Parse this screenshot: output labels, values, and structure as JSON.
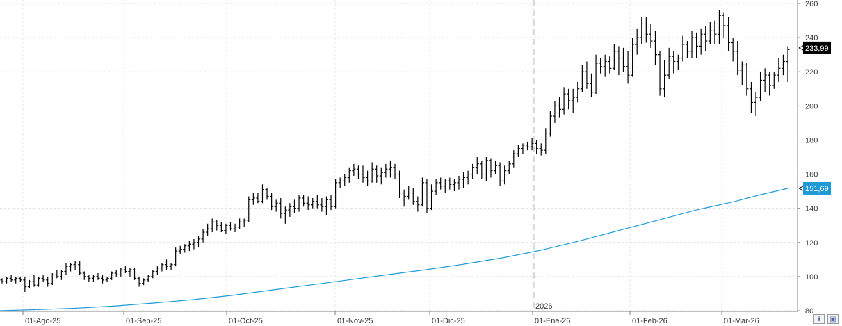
{
  "chart_data": {
    "type": "ohlc",
    "y_axis": {
      "ticks": [
        80,
        100,
        120,
        140,
        160,
        180,
        200,
        220,
        240,
        260
      ],
      "range": [
        80,
        262
      ],
      "position": "right",
      "grid": true
    },
    "x_axis": {
      "tick_labels": [
        "01-Ago-25",
        "01-Sep-25",
        "01-Oct-25",
        "01-Nov-25",
        "01-Dic-25",
        "01-Ene-26",
        "01-Feb-26",
        "01-Mar-26"
      ],
      "year_marker": "2026",
      "grid": true
    },
    "ohlc": [
      [
        98,
        99,
        96,
        97
      ],
      [
        97,
        100,
        96,
        99
      ],
      [
        99,
        101,
        97,
        98
      ],
      [
        98,
        100,
        96,
        99
      ],
      [
        99,
        100,
        97,
        98
      ],
      [
        98,
        100,
        91,
        94
      ],
      [
        94,
        98,
        93,
        97
      ],
      [
        97,
        101,
        94,
        95
      ],
      [
        95,
        100,
        94,
        99
      ],
      [
        99,
        101,
        97,
        98
      ],
      [
        98,
        100,
        94,
        96
      ],
      [
        96,
        102,
        95,
        101
      ],
      [
        101,
        104,
        99,
        100
      ],
      [
        100,
        104,
        98,
        103
      ],
      [
        103,
        108,
        101,
        106
      ],
      [
        106,
        108,
        103,
        107
      ],
      [
        107,
        109,
        104,
        108
      ],
      [
        107,
        109,
        101,
        102
      ],
      [
        102,
        103,
        98,
        100
      ],
      [
        100,
        101,
        97,
        99
      ],
      [
        99,
        101,
        97,
        100
      ],
      [
        100,
        102,
        98,
        99
      ],
      [
        99,
        101,
        96,
        98
      ],
      [
        98,
        100,
        97,
        99
      ],
      [
        99,
        103,
        98,
        102
      ],
      [
        102,
        104,
        100,
        101
      ],
      [
        101,
        105,
        100,
        104
      ],
      [
        104,
        106,
        102,
        103
      ],
      [
        103,
        105,
        100,
        104
      ],
      [
        104,
        105,
        98,
        99
      ],
      [
        99,
        100,
        94,
        96
      ],
      [
        96,
        99,
        95,
        98
      ],
      [
        98,
        101,
        97,
        100
      ],
      [
        100,
        104,
        99,
        103
      ],
      [
        103,
        106,
        101,
        105
      ],
      [
        105,
        108,
        103,
        107
      ],
      [
        107,
        110,
        104,
        106
      ],
      [
        106,
        108,
        104,
        107
      ],
      [
        107,
        117,
        106,
        115
      ],
      [
        115,
        118,
        113,
        116
      ],
      [
        116,
        119,
        114,
        118
      ],
      [
        118,
        121,
        115,
        119
      ],
      [
        119,
        122,
        116,
        120
      ],
      [
        120,
        124,
        117,
        122
      ],
      [
        122,
        128,
        120,
        126
      ],
      [
        126,
        131,
        124,
        128
      ],
      [
        128,
        134,
        126,
        132
      ],
      [
        132,
        133,
        127,
        130
      ],
      [
        130,
        132,
        126,
        127
      ],
      [
        127,
        131,
        125,
        130
      ],
      [
        130,
        132,
        127,
        128
      ],
      [
        128,
        131,
        126,
        129
      ],
      [
        129,
        134,
        128,
        132
      ],
      [
        132,
        134,
        129,
        133
      ],
      [
        133,
        147,
        132,
        145
      ],
      [
        145,
        149,
        142,
        146
      ],
      [
        146,
        149,
        143,
        144
      ],
      [
        144,
        154,
        143,
        151
      ],
      [
        151,
        152,
        145,
        147
      ],
      [
        147,
        149,
        139,
        141
      ],
      [
        141,
        145,
        138,
        143
      ],
      [
        143,
        146,
        134,
        137
      ],
      [
        137,
        141,
        131,
        139
      ],
      [
        139,
        143,
        135,
        141
      ],
      [
        141,
        145,
        137,
        140
      ],
      [
        140,
        148,
        138,
        146
      ],
      [
        146,
        148,
        141,
        143
      ],
      [
        143,
        147,
        139,
        142
      ],
      [
        142,
        146,
        140,
        144
      ],
      [
        144,
        148,
        140,
        142
      ],
      [
        142,
        146,
        138,
        141
      ],
      [
        141,
        147,
        136,
        145
      ],
      [
        145,
        148,
        139,
        141
      ],
      [
        141,
        157,
        140,
        155
      ],
      [
        155,
        158,
        152,
        156
      ],
      [
        156,
        160,
        153,
        158
      ],
      [
        158,
        164,
        155,
        162
      ],
      [
        162,
        166,
        159,
        163
      ],
      [
        163,
        165,
        157,
        160
      ],
      [
        160,
        165,
        155,
        158
      ],
      [
        158,
        162,
        153,
        156
      ],
      [
        156,
        167,
        155,
        163
      ],
      [
        163,
        165,
        155,
        159
      ],
      [
        159,
        164,
        154,
        161
      ],
      [
        161,
        166,
        158,
        163
      ],
      [
        163,
        168,
        158,
        164
      ],
      [
        164,
        166,
        157,
        160
      ],
      [
        160,
        162,
        146,
        149
      ],
      [
        149,
        151,
        141,
        147
      ],
      [
        147,
        153,
        145,
        149
      ],
      [
        149,
        152,
        142,
        144
      ],
      [
        144,
        147,
        138,
        142
      ],
      [
        142,
        158,
        141,
        155
      ],
      [
        155,
        157,
        137,
        140
      ],
      [
        140,
        154,
        139,
        150
      ],
      [
        150,
        157,
        148,
        155
      ],
      [
        155,
        158,
        151,
        153
      ],
      [
        153,
        157,
        149,
        156
      ],
      [
        156,
        158,
        151,
        154
      ],
      [
        154,
        157,
        150,
        155
      ],
      [
        155,
        159,
        151,
        157
      ],
      [
        157,
        161,
        152,
        158
      ],
      [
        158,
        162,
        154,
        160
      ],
      [
        160,
        166,
        157,
        164
      ],
      [
        164,
        170,
        160,
        166
      ],
      [
        166,
        168,
        157,
        160
      ],
      [
        160,
        170,
        156,
        168
      ],
      [
        168,
        169,
        158,
        162
      ],
      [
        162,
        168,
        160,
        165
      ],
      [
        165,
        167,
        153,
        156
      ],
      [
        156,
        165,
        154,
        162
      ],
      [
        162,
        168,
        160,
        166
      ],
      [
        166,
        174,
        164,
        172
      ],
      [
        172,
        177,
        170,
        175
      ],
      [
        175,
        178,
        172,
        177
      ],
      [
        177,
        179,
        174,
        176
      ],
      [
        176,
        181,
        174,
        178
      ],
      [
        178,
        180,
        172,
        175
      ],
      [
        175,
        178,
        171,
        174
      ],
      [
        174,
        187,
        172,
        184
      ],
      [
        184,
        197,
        182,
        194
      ],
      [
        194,
        203,
        190,
        200
      ],
      [
        200,
        205,
        193,
        198
      ],
      [
        198,
        211,
        195,
        207
      ],
      [
        207,
        210,
        198,
        203
      ],
      [
        203,
        210,
        196,
        205
      ],
      [
        205,
        214,
        202,
        210
      ],
      [
        210,
        224,
        208,
        220
      ],
      [
        220,
        226,
        210,
        213
      ],
      [
        213,
        219,
        205,
        208
      ],
      [
        208,
        230,
        207,
        225
      ],
      [
        225,
        228,
        219,
        223
      ],
      [
        223,
        230,
        217,
        226
      ],
      [
        226,
        229,
        219,
        222
      ],
      [
        222,
        236,
        221,
        232
      ],
      [
        232,
        235,
        218,
        228
      ],
      [
        228,
        234,
        220,
        223
      ],
      [
        223,
        232,
        213,
        218
      ],
      [
        218,
        240,
        217,
        236
      ],
      [
        236,
        245,
        230,
        240
      ],
      [
        240,
        252,
        236,
        248
      ],
      [
        248,
        252,
        237,
        242
      ],
      [
        242,
        248,
        234,
        238
      ],
      [
        238,
        244,
        224,
        230
      ],
      [
        230,
        232,
        206,
        210
      ],
      [
        210,
        227,
        205,
        218
      ],
      [
        218,
        234,
        216,
        229
      ],
      [
        229,
        232,
        219,
        226
      ],
      [
        226,
        230,
        221,
        228
      ],
      [
        228,
        241,
        226,
        236
      ],
      [
        236,
        238,
        228,
        232
      ],
      [
        232,
        244,
        228,
        240
      ],
      [
        240,
        243,
        228,
        235
      ],
      [
        235,
        245,
        230,
        242
      ],
      [
        242,
        247,
        232,
        238
      ],
      [
        238,
        249,
        236,
        244
      ],
      [
        244,
        250,
        236,
        242
      ],
      [
        242,
        256,
        236,
        253
      ],
      [
        253,
        255,
        240,
        247
      ],
      [
        247,
        252,
        232,
        237
      ],
      [
        237,
        240,
        226,
        232
      ],
      [
        232,
        238,
        218,
        221
      ],
      [
        221,
        226,
        212,
        224
      ],
      [
        224,
        225,
        206,
        210
      ],
      [
        210,
        214,
        196,
        202
      ],
      [
        202,
        208,
        194,
        205
      ],
      [
        205,
        220,
        203,
        215
      ],
      [
        215,
        222,
        208,
        218
      ],
      [
        218,
        220,
        206,
        212
      ],
      [
        212,
        220,
        210,
        218
      ],
      [
        218,
        228,
        214,
        222
      ],
      [
        222,
        230,
        218,
        226
      ],
      [
        226,
        235,
        214,
        233
      ]
    ],
    "moving_average": {
      "color": "#1e9bd7",
      "points": [
        [
          0,
          80
        ],
        [
          30,
          80.7
        ],
        [
          60,
          81.5
        ],
        [
          90,
          82.8
        ],
        [
          120,
          84.5
        ],
        [
          150,
          86.5
        ],
        [
          180,
          89
        ],
        [
          210,
          92
        ],
        [
          240,
          95
        ],
        [
          270,
          98
        ],
        [
          300,
          101
        ],
        [
          330,
          104
        ],
        [
          360,
          107.3
        ],
        [
          390,
          111
        ],
        [
          420,
          115.5
        ],
        [
          450,
          121
        ],
        [
          480,
          127
        ],
        [
          510,
          133
        ],
        [
          540,
          139
        ],
        [
          570,
          144
        ],
        [
          590,
          148
        ],
        [
          611,
          151.69
        ]
      ]
    },
    "last_price": {
      "value": 233.99,
      "label": "233,99",
      "color": "#000000"
    },
    "ma_last": {
      "value": 151.69,
      "label": "151,69",
      "color": "#1e9bd7"
    },
    "highlight_box": {
      "x_from": 452,
      "x_to": 578,
      "y_from": 196,
      "y_to": 258,
      "fill": "#ccffcc",
      "border": "#999999"
    },
    "signal_arrow": {
      "x": 562,
      "y": 178,
      "color": "#24b2b2"
    },
    "gridlines": true,
    "legend": "none"
  }
}
